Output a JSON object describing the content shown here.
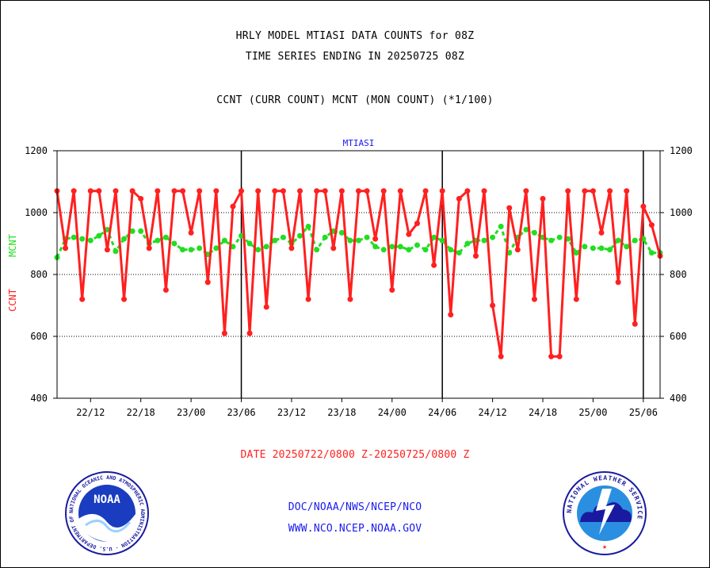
{
  "header": {
    "title_line1": "HRLY MODEL MTIASI DATA COUNTS for 08Z",
    "title_line2": "TIME SERIES ENDING IN 20250725 08Z",
    "subtitle": "CCNT (CURR COUNT) MCNT (MON COUNT) (*1/100)"
  },
  "chart_data": {
    "type": "line",
    "title": "MTIASI",
    "ylabel_ccnt": "CCNT",
    "ylabel_mcnt": "MCNT",
    "ylim": [
      400,
      1200
    ],
    "yticks": [
      "400",
      "600",
      "800",
      "1000",
      "1200"
    ],
    "xlim": [
      0,
      72
    ],
    "xticks": [
      {
        "x": 4,
        "label": "22/12"
      },
      {
        "x": 10,
        "label": "22/18"
      },
      {
        "x": 16,
        "label": "23/00"
      },
      {
        "x": 22,
        "label": "23/06"
      },
      {
        "x": 28,
        "label": "23/12"
      },
      {
        "x": 34,
        "label": "23/18"
      },
      {
        "x": 40,
        "label": "24/00"
      },
      {
        "x": 46,
        "label": "24/06"
      },
      {
        "x": 52,
        "label": "24/12"
      },
      {
        "x": 58,
        "label": "24/18"
      },
      {
        "x": 64,
        "label": "25/00"
      },
      {
        "x": 70,
        "label": "25/06"
      }
    ],
    "day_boundaries": [
      22,
      46,
      70
    ],
    "grid_y": [
      600,
      800,
      1000
    ],
    "colors": {
      "ccnt": "#ff2020",
      "mcnt": "#22dd22",
      "axes_title": "#1a1aee"
    },
    "series": [
      {
        "name": "CCNT",
        "values": [
          1070,
          885,
          1070,
          720,
          1070,
          1070,
          880,
          1070,
          720,
          1070,
          1045,
          885,
          1070,
          750,
          1070,
          1070,
          935,
          1070,
          775,
          1070,
          610,
          1020,
          1070,
          610,
          1070,
          695,
          1070,
          1070,
          885,
          1070,
          720,
          1070,
          1070,
          885,
          1070,
          720,
          1070,
          1070,
          915,
          1070,
          750,
          1070,
          930,
          965,
          1070,
          830,
          1070,
          670,
          1045,
          1070,
          860,
          1070,
          700,
          535,
          1015,
          880,
          1070,
          720,
          1045,
          535,
          535,
          1070,
          720,
          1070,
          1070,
          935,
          1070,
          775,
          1070,
          640,
          1020,
          960,
          860
        ]
      },
      {
        "name": "MCNT",
        "values": [
          855,
          915,
          920,
          915,
          910,
          925,
          945,
          875,
          915,
          940,
          940,
          900,
          910,
          920,
          900,
          880,
          880,
          885,
          865,
          885,
          910,
          890,
          925,
          900,
          880,
          890,
          910,
          920,
          900,
          925,
          955,
          880,
          920,
          940,
          935,
          910,
          910,
          920,
          890,
          880,
          890,
          890,
          880,
          895,
          880,
          920,
          910,
          880,
          870,
          900,
          910,
          910,
          920,
          955,
          870,
          920,
          945,
          935,
          920,
          910,
          920,
          915,
          870,
          890,
          885,
          885,
          880,
          910,
          890,
          910,
          915,
          870,
          870
        ]
      }
    ],
    "xlabel": "DATE 20250722/0800 Z-20250725/0800 Z"
  },
  "footer": {
    "line1": "DOC/NOAA/NWS/NCEP/NCO",
    "line2": "WWW.NCO.NCEP.NOAA.GOV"
  },
  "logos": {
    "noaa": {
      "text": "NOAA",
      "ring_text": "NATIONAL OCEANIC AND ATMOSPHERIC ADMINISTRATION · U.S. DEPARTMENT OF COMMERCE"
    },
    "nws": {
      "ring_text": "NATIONAL WEATHER SERVICE"
    }
  }
}
